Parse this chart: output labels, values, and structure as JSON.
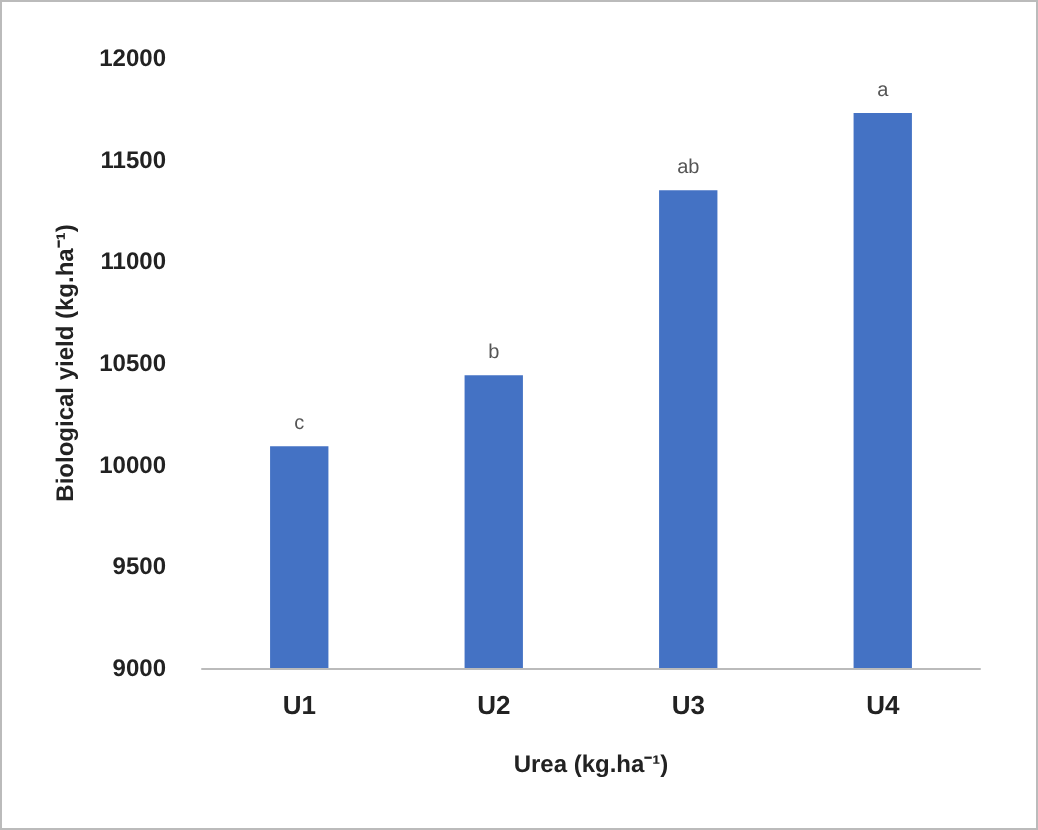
{
  "chart_data": {
    "type": "bar",
    "xlabel": "Urea (kg.ha⁻¹)",
    "ylabel": "Biological yield (kg.ha⁻¹)",
    "categories": [
      "U1",
      "U2",
      "U3",
      "U4"
    ],
    "values": [
      10090,
      10440,
      11350,
      11730
    ],
    "color": "#4472c4",
    "ylim": [
      9000,
      12000
    ],
    "yticks": [
      9000,
      9500,
      10000,
      10500,
      11000,
      11500,
      12000
    ],
    "grid": false,
    "annotations": [
      {
        "text": "c",
        "x": "U1",
        "y": 10090
      },
      {
        "text": "b",
        "x": "U2",
        "y": 10440
      },
      {
        "text": "ab",
        "x": "U3",
        "y": 11350
      },
      {
        "text": "a",
        "x": "U4",
        "y": 11730
      }
    ]
  }
}
